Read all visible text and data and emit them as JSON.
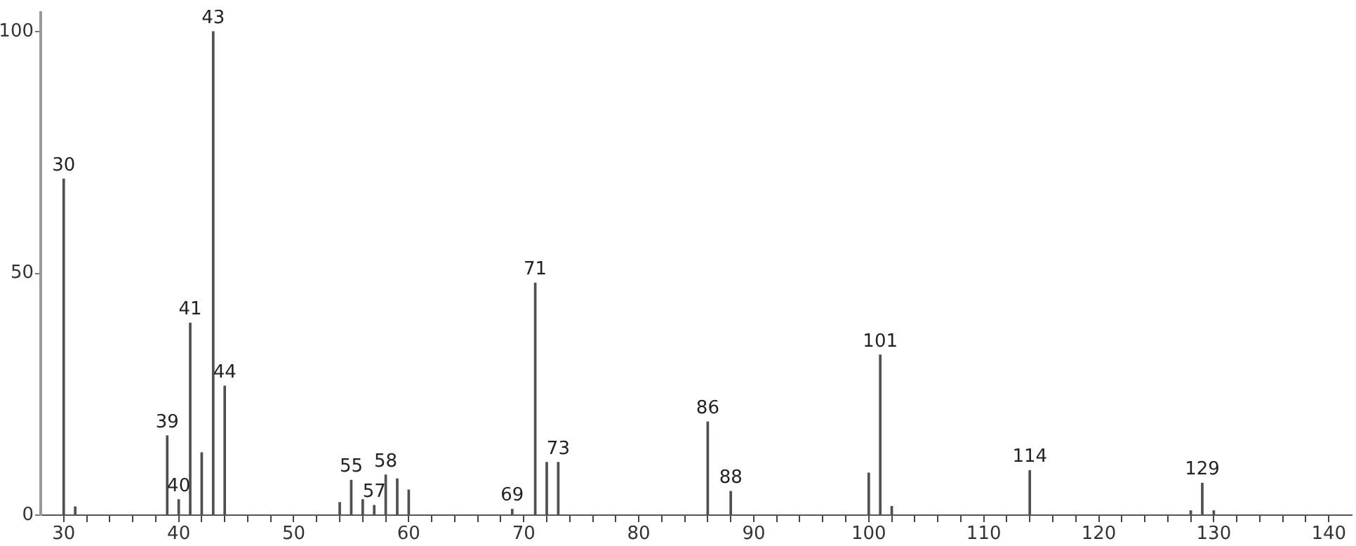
{
  "chart_data": {
    "type": "bar",
    "color": "#505050",
    "x": [
      30,
      31,
      39,
      40,
      41,
      42,
      43,
      44,
      54,
      55,
      56,
      57,
      58,
      59,
      60,
      69,
      71,
      72,
      73,
      86,
      88,
      100,
      101,
      102,
      114,
      128,
      129,
      130
    ],
    "values": [
      69.5,
      1.7,
      16.4,
      3.2,
      39.7,
      12.9,
      100,
      26.7,
      2.6,
      7.2,
      3.2,
      2.0,
      8.3,
      7.5,
      5.2,
      1.2,
      48,
      10.9,
      10.9,
      19.3,
      4.9,
      8.7,
      33.1,
      1.8,
      9.2,
      0.9,
      6.6,
      0.9
    ],
    "xlim": [
      28,
      142
    ],
    "xticks": [
      30,
      {
        "value": 32,
        "label": null
      },
      {
        "value": 34,
        "label": null
      },
      {
        "value": 36,
        "label": null
      },
      {
        "value": 38,
        "label": null
      },
      40,
      {
        "value": 42,
        "label": null
      },
      {
        "value": 44,
        "label": null
      },
      {
        "value": 46,
        "label": null
      },
      {
        "value": 48,
        "label": null
      },
      50,
      {
        "value": 52,
        "label": null
      },
      {
        "value": 54,
        "label": null
      },
      {
        "value": 56,
        "label": null
      },
      {
        "value": 58,
        "label": null
      },
      60,
      {
        "value": 62,
        "label": null
      },
      {
        "value": 64,
        "label": null
      },
      {
        "value": 66,
        "label": null
      },
      {
        "value": 68,
        "label": null
      },
      70,
      {
        "value": 72,
        "label": null
      },
      {
        "value": 74,
        "label": null
      },
      {
        "value": 76,
        "label": null
      },
      {
        "value": 78,
        "label": null
      },
      80,
      {
        "value": 82,
        "label": null
      },
      {
        "value": 84,
        "label": null
      },
      {
        "value": 86,
        "label": null
      },
      {
        "value": 88,
        "label": null
      },
      90,
      {
        "value": 92,
        "label": null
      },
      {
        "value": 94,
        "label": null
      },
      {
        "value": 96,
        "label": null
      },
      {
        "value": 98,
        "label": null
      },
      100,
      {
        "value": 102,
        "label": null
      },
      {
        "value": 104,
        "label": null
      },
      {
        "value": 106,
        "label": null
      },
      {
        "value": 108,
        "label": null
      },
      110,
      {
        "value": 112,
        "label": null
      },
      {
        "value": 114,
        "label": null
      },
      {
        "value": 116,
        "label": null
      },
      {
        "value": 118,
        "label": null
      },
      120,
      {
        "value": 122,
        "label": null
      },
      {
        "value": 124,
        "label": null
      },
      {
        "value": 126,
        "label": null
      },
      {
        "value": 128,
        "label": null
      },
      130,
      {
        "value": 132,
        "label": null
      },
      {
        "value": 134,
        "label": null
      },
      {
        "value": 136,
        "label": null
      },
      {
        "value": 138,
        "label": null
      },
      140
    ],
    "ylim": [
      0,
      104
    ],
    "yticks": [
      0,
      50,
      100
    ],
    "grid": false,
    "legend": false,
    "annotations": [
      {
        "text": "30",
        "x": 30,
        "y": 69.5
      },
      {
        "text": "39",
        "x": 39,
        "y": 16.4
      },
      {
        "text": "40",
        "x": 40,
        "y": 3.2
      },
      {
        "text": "41",
        "x": 41,
        "y": 39.7
      },
      {
        "text": "43",
        "x": 43,
        "y": 100
      },
      {
        "text": "44",
        "x": 44,
        "y": 26.7
      },
      {
        "text": "55",
        "x": 55,
        "y": 7.2
      },
      {
        "text": "57",
        "x": 57,
        "y": 2.0
      },
      {
        "text": "58",
        "x": 58,
        "y": 8.3
      },
      {
        "text": "69",
        "x": 69,
        "y": 1.2
      },
      {
        "text": "71",
        "x": 71,
        "y": 48
      },
      {
        "text": "73",
        "x": 73,
        "y": 10.9
      },
      {
        "text": "86",
        "x": 86,
        "y": 19.3
      },
      {
        "text": "88",
        "x": 88,
        "y": 4.9
      },
      {
        "text": "101",
        "x": 101,
        "y": 33.1
      },
      {
        "text": "114",
        "x": 114,
        "y": 9.2
      },
      {
        "text": "129",
        "x": 129,
        "y": 6.6
      }
    ]
  }
}
